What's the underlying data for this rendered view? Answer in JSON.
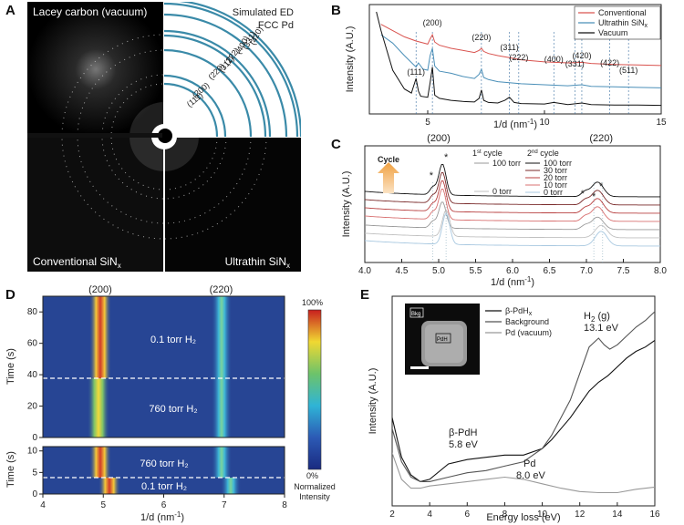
{
  "panels": {
    "A": {
      "label": "A",
      "top_left": "Lacey carbon (vacuum)",
      "top_right_1": "Simulated ED",
      "top_right_2": "FCC Pd",
      "bottom_left": "Conventional SiN",
      "bottom_left_sub": "x",
      "bottom_right": "Ultrathin SiN",
      "bottom_right_sub": "x",
      "rings": [
        "(111)",
        "(200)",
        "(220)",
        "(311)",
        "(222)",
        "(400)",
        "(331)",
        "(420)"
      ]
    },
    "B": {
      "label": "B"
    },
    "C": {
      "label": "C"
    },
    "D": {
      "label": "D"
    },
    "E": {
      "label": "E"
    }
  },
  "colors": {
    "red": "#d9534f",
    "blue": "#4a8fb8",
    "black": "#111111",
    "dashed_blue": "#3a6fa0"
  },
  "chart_data": [
    {
      "panel": "B",
      "type": "line",
      "xlabel": "1/d (nm",
      "xlabel_sup": "-1",
      "xlabel_end": ")",
      "ylabel": "Intensity (A.U.)",
      "xlim": [
        2.5,
        15
      ],
      "x_ticks": [
        "5",
        "10",
        "15"
      ],
      "legend": [
        "Conventional",
        "Ultrathin SiN",
        "Vacuum"
      ],
      "legend_sub": "x",
      "peaks": [
        {
          "label": "(111)",
          "x": 4.5
        },
        {
          "label": "(200)",
          "x": 5.2
        },
        {
          "label": "(220)",
          "x": 7.3
        },
        {
          "label": "(311)",
          "x": 8.5
        },
        {
          "label": "(222)",
          "x": 8.9
        },
        {
          "label": "(400)",
          "x": 10.4
        },
        {
          "label": "(331)",
          "x": 11.3
        },
        {
          "label": "(420)",
          "x": 11.6
        },
        {
          "label": "(422)",
          "x": 12.8
        },
        {
          "label": "(511)",
          "x": 13.6
        }
      ],
      "series": [
        {
          "name": "Conventional",
          "color": "#d9534f",
          "x": [
            3,
            3.5,
            4,
            4.5,
            5,
            5.1,
            5.2,
            5.3,
            5.5,
            6,
            6.5,
            7,
            7.2,
            7.3,
            7.4,
            7.6,
            8,
            8.5,
            9,
            10,
            11,
            11.6,
            12,
            13,
            14,
            15
          ],
          "y": [
            8.6,
            8.0,
            7.4,
            7.0,
            6.7,
            7.2,
            7.6,
            6.9,
            6.6,
            6.3,
            6.1,
            5.9,
            6.1,
            6.3,
            6.0,
            5.8,
            5.6,
            5.4,
            5.2,
            5.0,
            4.9,
            4.95,
            4.85,
            4.75,
            4.7,
            4.65
          ]
        },
        {
          "name": "Ultrathin SiN",
          "color": "#4a8fb8",
          "x": [
            3,
            3.5,
            4,
            4.5,
            4.6,
            4.8,
            5,
            5.1,
            5.2,
            5.3,
            5.5,
            6,
            6.5,
            7,
            7.2,
            7.3,
            7.4,
            7.6,
            8,
            8.5,
            9,
            10,
            11,
            11.6,
            12,
            13,
            14,
            15
          ],
          "y": [
            7.6,
            6.8,
            5.6,
            4.5,
            4.9,
            4.3,
            4.2,
            5.6,
            6.3,
            4.6,
            4.1,
            3.9,
            3.6,
            3.4,
            3.8,
            4.3,
            3.5,
            3.3,
            3.1,
            3.0,
            2.9,
            2.8,
            2.7,
            2.8,
            2.65,
            2.6,
            2.55,
            2.5
          ]
        },
        {
          "name": "Vacuum",
          "color": "#111111",
          "x": [
            2.8,
            3,
            3.5,
            4,
            4.3,
            4.5,
            4.6,
            4.7,
            5,
            5.1,
            5.2,
            5.3,
            5.5,
            6,
            6.5,
            7,
            7.2,
            7.3,
            7.4,
            7.6,
            8,
            8.3,
            8.5,
            8.7,
            9,
            10,
            10.4,
            11,
            11.6,
            12,
            13,
            14,
            15
          ],
          "y": [
            9.8,
            8.0,
            4.2,
            2.4,
            2.0,
            3.4,
            2.2,
            1.7,
            1.6,
            3.0,
            4.5,
            1.8,
            1.5,
            1.3,
            1.2,
            1.15,
            1.5,
            2.3,
            1.3,
            1.1,
            1.05,
            1.3,
            1.6,
            1.1,
            1.0,
            0.95,
            1.1,
            0.9,
            1.05,
            0.9,
            0.85,
            0.85,
            0.82
          ]
        }
      ]
    },
    {
      "panel": "C",
      "type": "line",
      "xlabel": "1/d (nm",
      "xlabel_sup": "-1",
      "xlabel_end": ")",
      "ylabel": "Intensity (A.U.)",
      "xlim": [
        4.0,
        8.0
      ],
      "x_ticks": [
        "4.0",
        "4.5",
        "5.0",
        "5.5",
        "6.0",
        "6.5",
        "7.0",
        "7.5",
        "8.0"
      ],
      "top_labels": [
        {
          "label": "(200)",
          "x": 5.0
        },
        {
          "label": "(220)",
          "x": 7.2
        }
      ],
      "cycle_label": "Cycle",
      "legend_col1_header": "1",
      "legend_col1_header_sup": "st",
      "legend_col1_header_end": " cycle",
      "legend_col2_header": "2",
      "legend_col2_header_sup": "nd",
      "legend_col2_header_end": " cycle",
      "legend_col1": [
        "100 torr",
        "0 torr"
      ],
      "legend_col2": [
        "100 torr",
        "30 torr",
        "20 torr",
        "10 torr",
        "0 torr"
      ],
      "asterisks": [
        4.9,
        5.1,
        6.95,
        7.1,
        7.2
      ],
      "traces": [
        {
          "name": "2nd cycle 100 torr",
          "color": "#111111",
          "offset": 6
        },
        {
          "name": "2nd cycle 30 torr",
          "color": "#7a2a2a",
          "offset": 5
        },
        {
          "name": "2nd cycle 20 torr",
          "color": "#b84040",
          "offset": 4
        },
        {
          "name": "2nd cycle 10 torr",
          "color": "#d87070",
          "offset": 3
        },
        {
          "name": "1st cycle 100 torr",
          "color": "#999999",
          "offset": 2
        },
        {
          "name": "1st cycle 0 torr",
          "color": "#c0c0c0",
          "offset": 1
        },
        {
          "name": "2nd cycle 0 torr",
          "color": "#a8c8e0",
          "offset": 0
        }
      ]
    },
    {
      "panel": "D",
      "type": "heatmap",
      "xlabel": "1/d (nm",
      "xlabel_sup": "-1",
      "xlabel_end": ")",
      "ylabel": "Time (s)",
      "xlim": [
        4,
        8
      ],
      "x_ticks": [
        "4",
        "5",
        "6",
        "7",
        "8"
      ],
      "top_ylim": [
        0,
        90
      ],
      "top_y_ticks": [
        "0",
        "20",
        "40",
        "60",
        "80"
      ],
      "bottom_ylim": [
        0,
        11
      ],
      "bottom_y_ticks": [
        "0",
        "5",
        "10"
      ],
      "top_labels": [
        {
          "label": "(200)",
          "x": 4.95
        },
        {
          "label": "(220)",
          "x": 6.95
        }
      ],
      "annotations": [
        "0.1 torr H₂",
        "760 torr H₂",
        "760 torr H₂",
        "0.1 torr H₂"
      ],
      "colorbar_max": "100%",
      "colorbar_min": "0%",
      "colorbar_label_1": "Normalized",
      "colorbar_label_2": "Intensity"
    },
    {
      "panel": "E",
      "type": "line",
      "xlabel": "Energy loss (eV)",
      "ylabel": "Intensity (A.U.)",
      "xlim": [
        2,
        16
      ],
      "x_ticks": [
        "2",
        "4",
        "6",
        "8",
        "10",
        "12",
        "14",
        "16"
      ],
      "legend": [
        "β-PdH",
        "Background",
        "Pd (vacuum)"
      ],
      "legend_sub": "x",
      "inset_labels": [
        "Bkg",
        "PdH"
      ],
      "annotations": [
        {
          "line1": "H",
          "sub": "2",
          "line1_end": " (g)",
          "line2": "13.1 eV"
        },
        {
          "line1": "β-PdH",
          "line2": "5.8 eV"
        },
        {
          "line1": "Pd",
          "line2": "8.0 eV"
        }
      ],
      "series": [
        {
          "name": "β-PdH",
          "color": "#111111",
          "x": [
            2,
            2.5,
            3,
            3.5,
            4,
            5,
            6,
            7,
            8,
            9,
            10,
            10.5,
            11,
            11.5,
            12,
            12.5,
            13,
            13.5,
            14,
            14.5,
            15,
            15.5,
            16
          ],
          "y": [
            4.0,
            2.2,
            1.4,
            1.1,
            1.2,
            1.9,
            2.1,
            2.2,
            2.3,
            2.3,
            2.6,
            3.0,
            3.5,
            4.0,
            4.6,
            5.2,
            5.6,
            5.9,
            6.3,
            6.7,
            7.0,
            7.2,
            7.5
          ]
        },
        {
          "name": "Background",
          "color": "#555555",
          "x": [
            2,
            2.5,
            3,
            3.5,
            4,
            5,
            6,
            7,
            8,
            9,
            10,
            10.5,
            11,
            11.5,
            12,
            12.5,
            13,
            13.3,
            13.6,
            14,
            14.5,
            15,
            15.5,
            16
          ],
          "y": [
            3.5,
            2.0,
            1.3,
            1.1,
            1.1,
            1.3,
            1.5,
            1.6,
            1.8,
            2.0,
            2.6,
            3.2,
            4.0,
            4.8,
            6.0,
            7.2,
            7.6,
            7.3,
            7.1,
            7.3,
            7.7,
            8.1,
            8.4,
            8.8
          ]
        },
        {
          "name": "Pd (vacuum)",
          "color": "#999999",
          "x": [
            2,
            2.5,
            3,
            3.5,
            4,
            5,
            6,
            7,
            8,
            9,
            10,
            11,
            12,
            13,
            14,
            15,
            16
          ],
          "y": [
            2.4,
            1.2,
            0.8,
            0.8,
            0.9,
            1.0,
            1.1,
            1.2,
            1.3,
            1.2,
            1.0,
            0.8,
            0.65,
            0.6,
            0.6,
            0.75,
            0.85
          ]
        }
      ]
    }
  ]
}
